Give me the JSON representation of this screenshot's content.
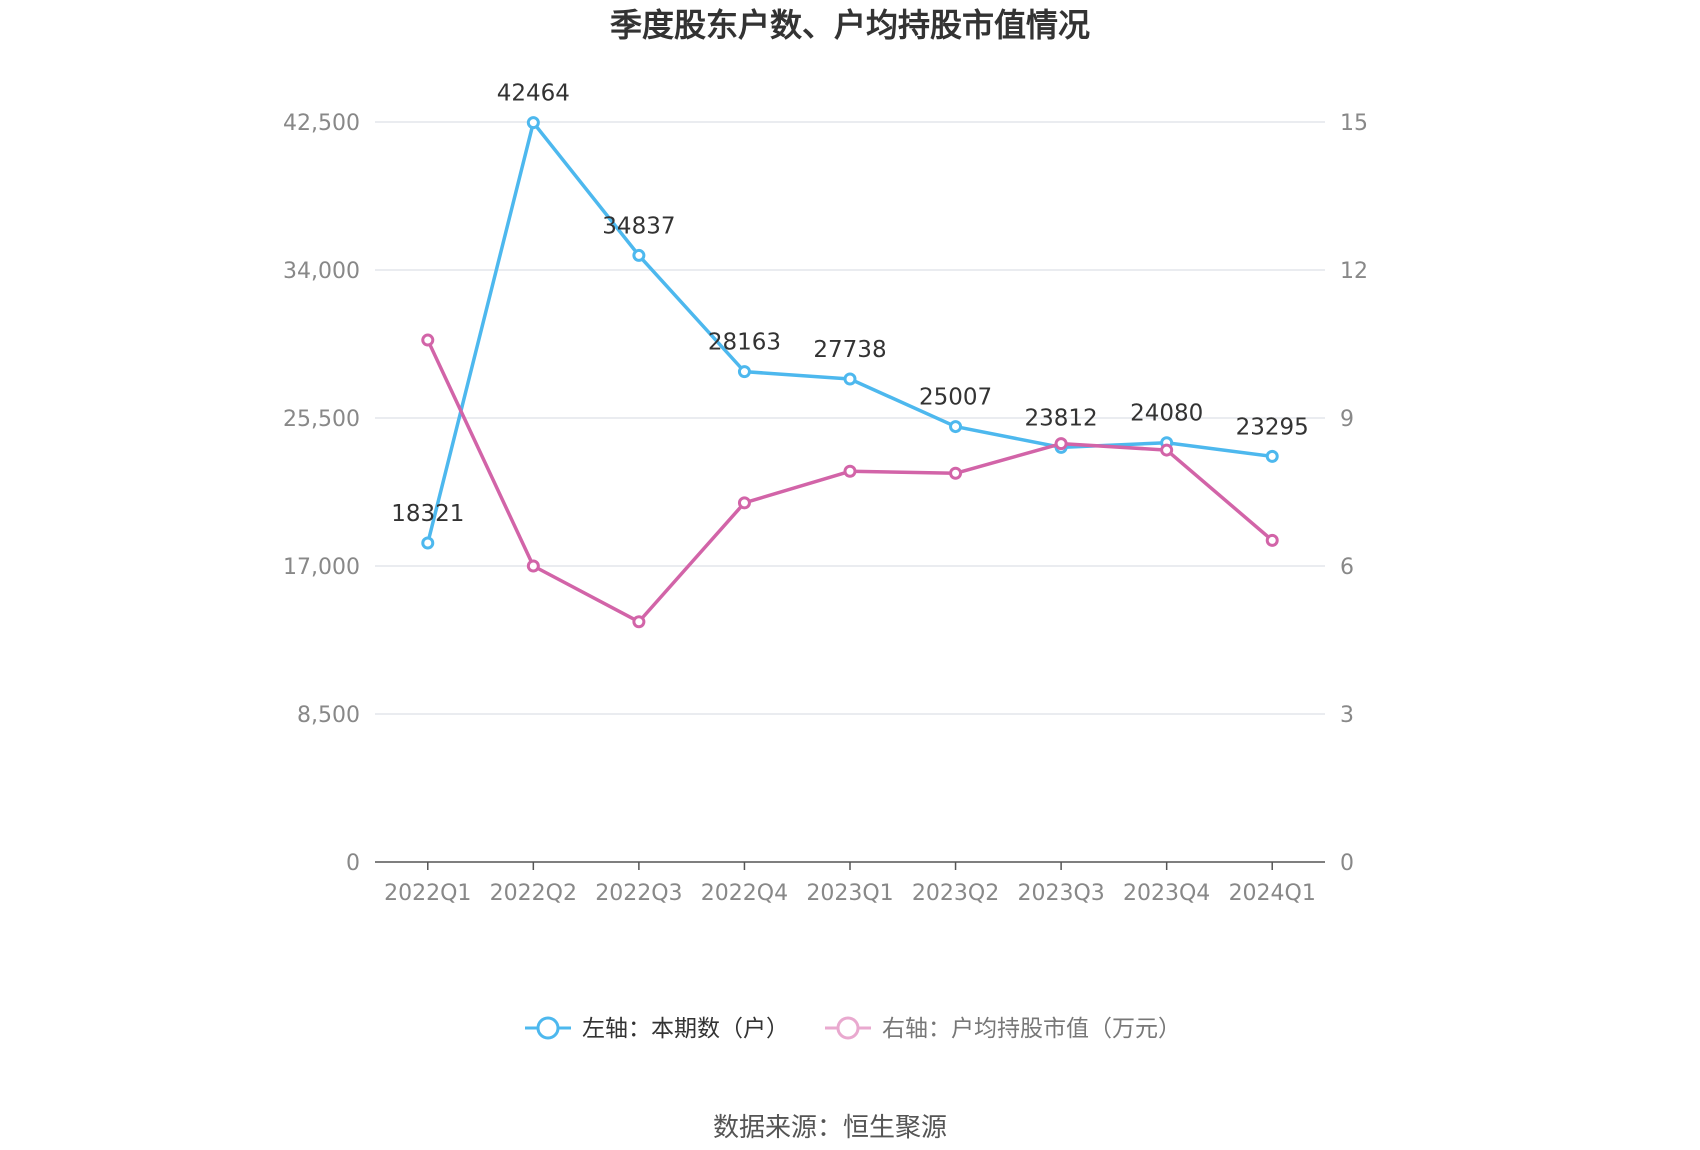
{
  "chart_data": {
    "type": "line",
    "title": "季度股东户数、户均持股市值情况",
    "categories": [
      "2022Q1",
      "2022Q2",
      "2022Q3",
      "2022Q4",
      "2023Q1",
      "2023Q2",
      "2023Q3",
      "2023Q4",
      "2024Q1"
    ],
    "left_axis": {
      "ylim": [
        0,
        42500
      ],
      "ticks": [
        "0",
        "8,500",
        "17,000",
        "25,500",
        "34,000",
        "42,500"
      ],
      "tick_values": [
        0,
        8500,
        17000,
        25500,
        34000,
        42500
      ]
    },
    "right_axis": {
      "ylim": [
        0,
        15
      ],
      "ticks": [
        "0",
        "3",
        "6",
        "9",
        "12",
        "15"
      ],
      "tick_values": [
        0,
        3,
        6,
        9,
        12,
        15
      ]
    },
    "series": [
      {
        "name": "左轴：本期数（户）",
        "axis": "left",
        "color": "#4db8ee",
        "values": [
          18321,
          42464,
          34837,
          28163,
          27738,
          25007,
          23812,
          24080,
          23295
        ],
        "labels": [
          "18321",
          "42464",
          "34837",
          "28163",
          "27738",
          "25007",
          "23812",
          "24080",
          "23295"
        ]
      },
      {
        "name": "右轴：户均持股市值（万元）",
        "axis": "right",
        "color": "#d264a8",
        "values": [
          10.58,
          6.0,
          4.87,
          7.28,
          7.92,
          7.88,
          8.48,
          8.35,
          6.52
        ]
      }
    ],
    "grid": true,
    "legend": "bottom"
  },
  "source": "数据来源：恒生聚源"
}
